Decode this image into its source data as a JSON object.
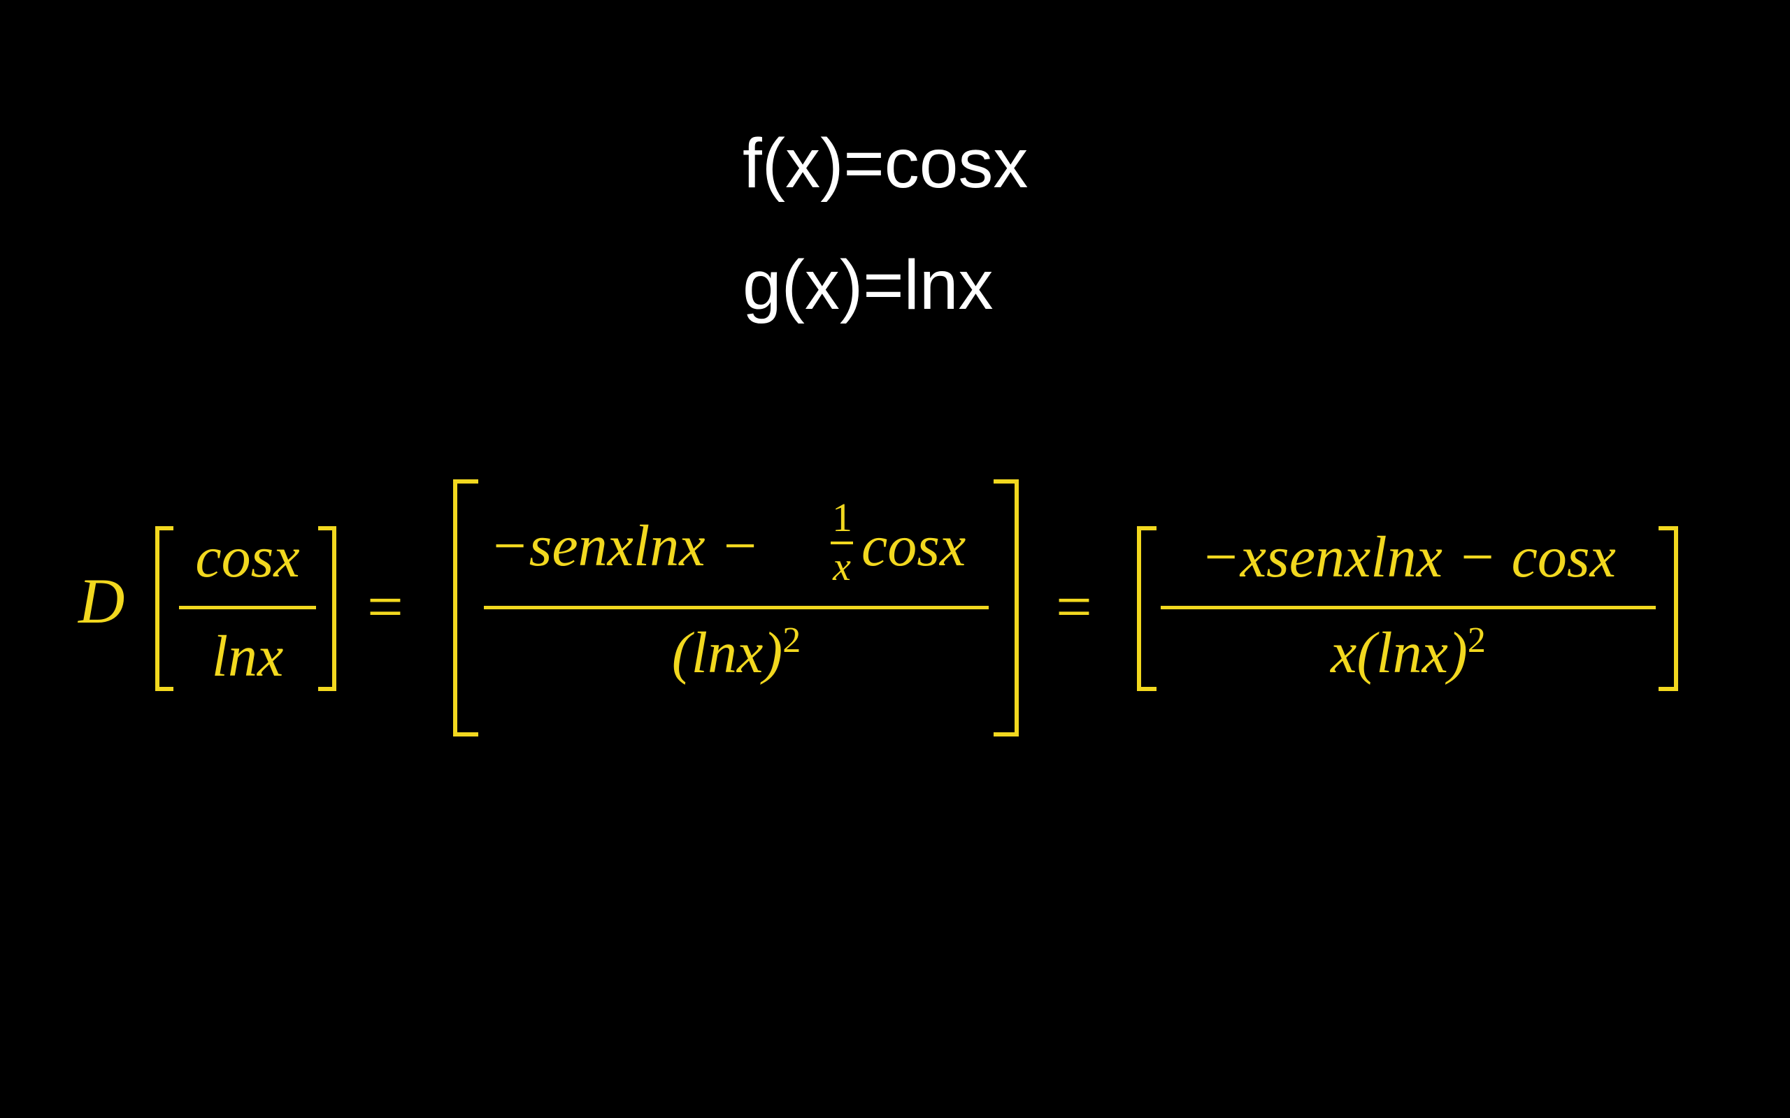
{
  "definitions": {
    "f": "f(x)=cosx",
    "g": "g(x)=lnx"
  },
  "equation": {
    "operator": "D",
    "lhs": {
      "numerator": "cosx",
      "denominator": "lnx"
    },
    "equals": "=",
    "middle": {
      "numerator_part1": "−senxlnx −",
      "inner_fraction_numerator": "1",
      "inner_fraction_denominator": "x",
      "numerator_part2": "cosx",
      "denominator": "(lnx)",
      "denominator_exponent": "2"
    },
    "rhs": {
      "numerator": "−xsenxlnx − cosx",
      "denominator": "x(lnx)",
      "denominator_exponent": "2"
    }
  },
  "colors": {
    "background": "#000000",
    "definitions_text": "#ffffff",
    "equation_text": "#f2d81f"
  }
}
